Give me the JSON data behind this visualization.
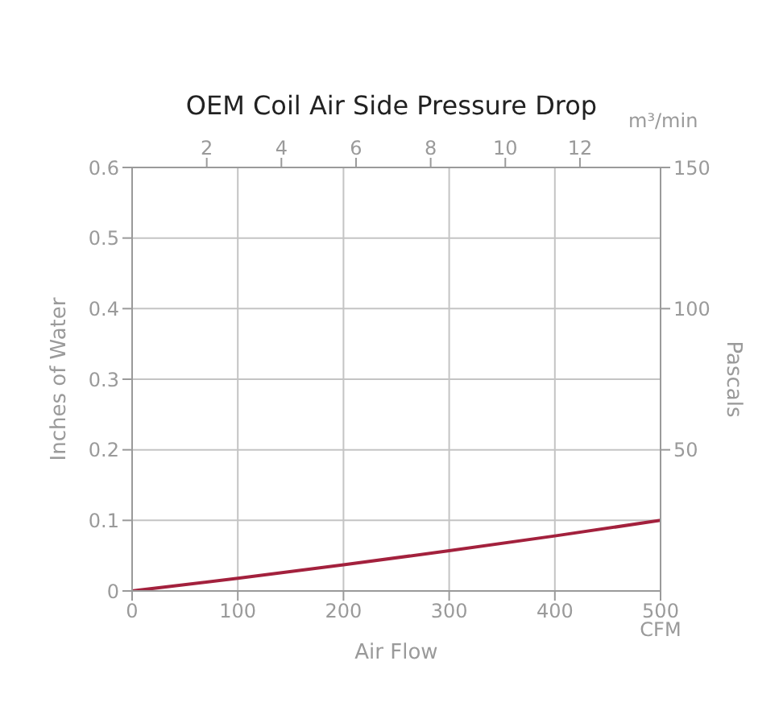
{
  "chart_data": {
    "type": "line",
    "title": "OEM Coil Air Side Pressure Drop",
    "xlabel": "Air Flow",
    "ylabel": "Inches of Water",
    "y2label": "Pascals",
    "x2label": "m³/min",
    "annotations": [
      "CFM"
    ],
    "x": [
      0,
      100,
      200,
      300,
      400,
      500
    ],
    "series": [
      {
        "color": "#a3213d",
        "values": [
          0,
          0.018,
          0.037,
          0.057,
          0.078,
          0.1
        ]
      }
    ],
    "xlim": [
      0,
      500
    ],
    "xticks": [
      0,
      100,
      200,
      300,
      400,
      500
    ],
    "ylim": [
      0,
      0.6
    ],
    "yticks": [
      0,
      0.1,
      0.2,
      0.3,
      0.4,
      0.5,
      0.6
    ],
    "x2lim": [
      0,
      14.16
    ],
    "x2ticks": [
      2,
      4,
      6,
      8,
      10,
      12
    ],
    "y2lim": [
      0,
      150
    ],
    "y2ticks": [
      50,
      100,
      150
    ],
    "grid": true,
    "marker": "none",
    "line_style": "solid"
  }
}
